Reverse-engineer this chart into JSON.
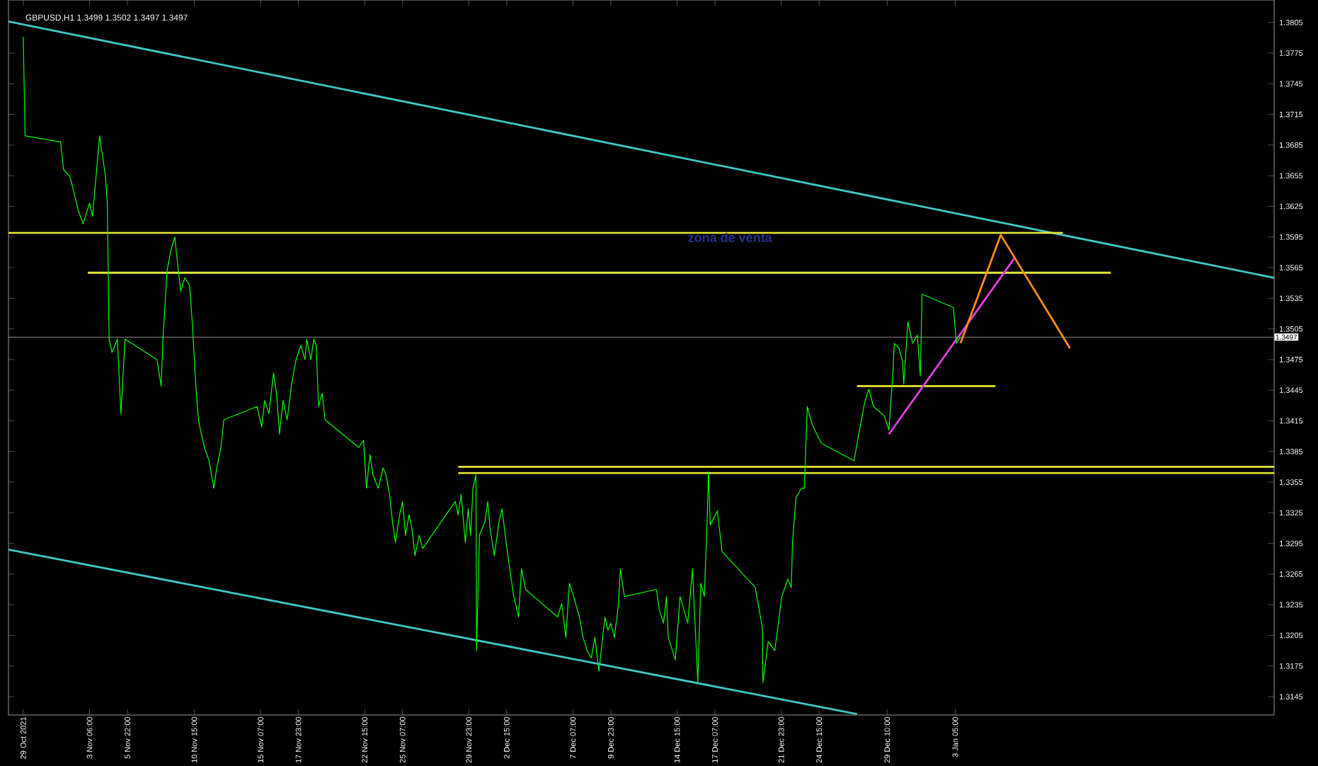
{
  "chart_data": {
    "type": "line",
    "title": "GBPUSD,H1  1.3499 1.3502 1.3497 1.3497",
    "line_style": "solid",
    "marker": "none",
    "xlim": [
      "2021-10-28T13:00",
      "2022-01-25T16:00"
    ],
    "ylim": [
      1.3127,
      1.3827
    ],
    "xticks": [
      {
        "value": "2021-10-29T14:00",
        "label": "29 Oct 2021"
      },
      {
        "value": "2021-11-03T06:00",
        "label": "3 Nov 06:00"
      },
      {
        "value": "2021-11-05T22:00",
        "label": "5 Nov 22:00"
      },
      {
        "value": "2021-11-10T15:00",
        "label": "10 Nov 15:00"
      },
      {
        "value": "2021-11-15T07:00",
        "label": "15 Nov 07:00"
      },
      {
        "value": "2021-11-17T23:00",
        "label": "17 Nov 23:00"
      },
      {
        "value": "2021-11-22T15:00",
        "label": "22 Nov 15:00"
      },
      {
        "value": "2021-11-25T07:00",
        "label": "25 Nov 07:00"
      },
      {
        "value": "2021-11-29T23:00",
        "label": "29 Nov 23:00"
      },
      {
        "value": "2021-12-02T15:00",
        "label": "2 Dec 15:00"
      },
      {
        "value": "2021-12-07T07:00",
        "label": "7 Dec 07:00"
      },
      {
        "value": "2021-12-09T23:00",
        "label": "9 Dec 23:00"
      },
      {
        "value": "2021-12-14T15:00",
        "label": "14 Dec 15:00"
      },
      {
        "value": "2021-12-17T07:00",
        "label": "17 Dec 07:00"
      },
      {
        "value": "2021-12-21T23:00",
        "label": "21 Dec 23:00"
      },
      {
        "value": "2021-12-24T15:00",
        "label": "24 Dec 15:00"
      },
      {
        "value": "2021-12-29T10:00",
        "label": "29 Dec 10:00"
      },
      {
        "value": "2022-01-03T05:00",
        "label": "3 Jan 05:00"
      }
    ],
    "yticks": [
      1.3145,
      1.3175,
      1.3205,
      1.3235,
      1.3265,
      1.3295,
      1.3325,
      1.3355,
      1.3385,
      1.3415,
      1.3445,
      1.3475,
      1.3505,
      1.3535,
      1.3565,
      1.3595,
      1.3625,
      1.3655,
      1.3685,
      1.3715,
      1.3745,
      1.3775,
      1.3805
    ],
    "ref_lines": [
      {
        "axis": "y",
        "value": 1.3497,
        "label": "1.3497",
        "color": "#8c8c8c"
      }
    ],
    "annotations": [
      "zona de venta"
    ],
    "series": [
      {
        "color": "#00ff00",
        "x": [
          "2021-10-29T14:00",
          "2021-10-29T17:00",
          "2021-11-01T05:00",
          "2021-11-01T10:00",
          "2021-11-01T21:00",
          "2021-11-02T11:00",
          "2021-11-02T19:00",
          "2021-11-03T06:00",
          "2021-11-03T11:00",
          "2021-11-03T23:00",
          "2021-11-04T09:00",
          "2021-11-04T12:00",
          "2021-11-04T15:00",
          "2021-11-04T20:00",
          "2021-11-05T05:00",
          "2021-11-05T11:00",
          "2021-11-05T18:00",
          "2021-11-08T00:00",
          "2021-11-08T07:00",
          "2021-11-08T10:00",
          "2021-11-08T17:00",
          "2021-11-08T23:00",
          "2021-11-09T06:00",
          "2021-11-09T11:00",
          "2021-11-09T16:00",
          "2021-11-09T23:00",
          "2021-11-10T07:00",
          "2021-11-10T12:00",
          "2021-11-10T17:00",
          "2021-11-10T22:00",
          "2021-11-11T03:00",
          "2021-11-11T08:00",
          "2021-11-11T16:00",
          "2021-11-12T00:00",
          "2021-11-12T05:00",
          "2021-11-12T12:00",
          "2021-11-12T17:00",
          "2021-11-15T01:00",
          "2021-11-15T09:00",
          "2021-11-15T14:00",
          "2021-11-15T21:00",
          "2021-11-16T05:00",
          "2021-11-16T10:00",
          "2021-11-16T15:00",
          "2021-11-16T21:00",
          "2021-11-17T04:00",
          "2021-11-17T11:00",
          "2021-11-17T19:00",
          "2021-11-18T03:00",
          "2021-11-18T10:00",
          "2021-11-18T13:00",
          "2021-11-18T20:00",
          "2021-11-19T01:00",
          "2021-11-19T05:00",
          "2021-11-19T09:00",
          "2021-11-19T15:00",
          "2021-11-19T20:00",
          "2021-11-22T05:00",
          "2021-11-22T13:00",
          "2021-11-22T18:00",
          "2021-11-23T00:00",
          "2021-11-23T05:00",
          "2021-11-23T14:00",
          "2021-11-23T22:00",
          "2021-11-24T03:00",
          "2021-11-24T09:00",
          "2021-11-24T14:00",
          "2021-11-24T19:00",
          "2021-11-25T02:00",
          "2021-11-25T07:00",
          "2021-11-25T12:00",
          "2021-11-25T18:00",
          "2021-11-25T23:00",
          "2021-11-26T04:00",
          "2021-11-26T11:00",
          "2021-11-26T17:00",
          "2021-11-29T00:00",
          "2021-11-29T05:00",
          "2021-11-29T10:00",
          "2021-11-29T17:00",
          "2021-11-29T22:00",
          "2021-11-30T02:00",
          "2021-11-30T06:00",
          "2021-11-30T11:00",
          "2021-11-30T12:00",
          "2021-11-30T17:00",
          "2021-12-01T02:00",
          "2021-12-01T07:00",
          "2021-12-01T11:00",
          "2021-12-01T18:00",
          "2021-12-02T02:00",
          "2021-12-02T07:00",
          "2021-12-02T14:00",
          "2021-12-02T20:00",
          "2021-12-03T03:00",
          "2021-12-03T11:00",
          "2021-12-03T16:00",
          "2021-12-03T23:00",
          "2021-12-06T05:00",
          "2021-12-06T12:00",
          "2021-12-06T19:00",
          "2021-12-07T01:00",
          "2021-12-07T08:00",
          "2021-12-07T18:00",
          "2021-12-08T00:00",
          "2021-12-08T07:00",
          "2021-12-08T14:00",
          "2021-12-08T20:00",
          "2021-12-09T03:00",
          "2021-12-09T08:00",
          "2021-12-09T13:00",
          "2021-12-09T18:00",
          "2021-12-09T23:00",
          "2021-12-10T05:00",
          "2021-12-10T12:00",
          "2021-12-10T15:00",
          "2021-12-10T22:00",
          "2021-12-13T04:00",
          "2021-12-13T09:00",
          "2021-12-13T16:00",
          "2021-12-13T21:00",
          "2021-12-14T00:00",
          "2021-12-14T12:00",
          "2021-12-14T20:00",
          "2021-12-15T09:00",
          "2021-12-15T17:00",
          "2021-12-16T02:00",
          "2021-12-16T07:00",
          "2021-12-16T13:00",
          "2021-12-16T18:00",
          "2021-12-16T20:00",
          "2021-12-16T23:00",
          "2021-12-17T11:00",
          "2021-12-17T19:00",
          "2021-12-20T03:00",
          "2021-12-20T15:00",
          "2021-12-20T16:00",
          "2021-12-21T01:00",
          "2021-12-21T12:00",
          "2021-12-22T00:00",
          "2021-12-22T10:00",
          "2021-12-22T16:00",
          "2021-12-22T18:00",
          "2021-12-23T00:00",
          "2021-12-23T09:00",
          "2021-12-23T14:00",
          "2021-12-23T19:00",
          "2021-12-24T03:00",
          "2021-12-24T11:00",
          "2021-12-24T19:00",
          "2021-12-27T02:00",
          "2021-12-27T10:00",
          "2021-12-27T20:00",
          "2021-12-28T03:00",
          "2021-12-28T11:00",
          "2021-12-28T19:00",
          "2021-12-29T05:00",
          "2021-12-29T13:00",
          "2021-12-29T20:00",
          "2021-12-29T22:00",
          "2021-12-30T06:00",
          "2021-12-30T12:00",
          "2021-12-30T14:00",
          "2021-12-30T21:00",
          "2021-12-31T05:00",
          "2021-12-31T13:00",
          "2021-12-31T18:00",
          "2021-12-31T21:00",
          "2022-01-03T02:00",
          "2022-01-03T07:00",
          "2022-01-03T14:00"
        ],
        "values": [
          1.3791,
          1.3694,
          1.3688,
          1.3661,
          1.3654,
          1.3621,
          1.3608,
          1.3628,
          1.3615,
          1.3694,
          1.3654,
          1.3628,
          1.3495,
          1.3482,
          1.3495,
          1.3422,
          1.3495,
          1.3475,
          1.3449,
          1.3495,
          1.3562,
          1.3581,
          1.3595,
          1.3568,
          1.3542,
          1.3555,
          1.3548,
          1.3508,
          1.3455,
          1.3416,
          1.3402,
          1.3389,
          1.3376,
          1.3349,
          1.3369,
          1.3389,
          1.3416,
          1.3429,
          1.3409,
          1.3435,
          1.3422,
          1.3462,
          1.3442,
          1.3402,
          1.3435,
          1.3416,
          1.3449,
          1.3475,
          1.3489,
          1.3475,
          1.3495,
          1.3475,
          1.3495,
          1.3489,
          1.3429,
          1.3442,
          1.3416,
          1.3389,
          1.3396,
          1.3349,
          1.3382,
          1.3362,
          1.3349,
          1.3369,
          1.3362,
          1.3343,
          1.3316,
          1.3296,
          1.3323,
          1.3336,
          1.3303,
          1.3323,
          1.3309,
          1.3283,
          1.3303,
          1.329,
          1.3336,
          1.3323,
          1.3343,
          1.3296,
          1.3329,
          1.3303,
          1.3349,
          1.3362,
          1.319,
          1.3303,
          1.3316,
          1.3336,
          1.3309,
          1.3283,
          1.3316,
          1.3329,
          1.3296,
          1.327,
          1.3243,
          1.3223,
          1.327,
          1.325,
          1.3223,
          1.3236,
          1.3203,
          1.3256,
          1.3243,
          1.3223,
          1.3203,
          1.319,
          1.3183,
          1.3203,
          1.317,
          1.3197,
          1.3223,
          1.321,
          1.3217,
          1.3203,
          1.3236,
          1.327,
          1.3243,
          1.325,
          1.323,
          1.3217,
          1.3243,
          1.3203,
          1.3181,
          1.3243,
          1.3217,
          1.327,
          1.3159,
          1.3256,
          1.3243,
          1.3323,
          1.3365,
          1.3313,
          1.3327,
          1.3287,
          1.3252,
          1.3213,
          1.3159,
          1.3199,
          1.319,
          1.3243,
          1.326,
          1.3252,
          1.3296,
          1.334,
          1.3349,
          1.3349,
          1.3429,
          1.3412,
          1.3402,
          1.3393,
          1.3376,
          1.3402,
          1.3433,
          1.3446,
          1.3429,
          1.3425,
          1.342,
          1.3406,
          1.3465,
          1.3491,
          1.3486,
          1.3473,
          1.3451,
          1.3512,
          1.3491,
          1.3499,
          1.3459,
          1.3539,
          1.3526,
          1.3491,
          1.3497
        ]
      },
      {
        "color": "#40c8c8",
        "x": [
          "2021-10-28T13:00",
          "2022-01-25T16:00"
        ],
        "values": [
          1.3806,
          1.3555
        ]
      },
      {
        "color": "#40c8c8",
        "x": [
          "2021-10-28T13:00",
          "2021-12-27T07:00"
        ],
        "values": [
          1.3289,
          1.3128
        ]
      },
      {
        "color": "#e6e632",
        "x": [
          "2021-10-28T13:00",
          "2022-01-10T19:00"
        ],
        "values": [
          1.3599,
          1.3599
        ]
      },
      {
        "color": "#e6e632",
        "x": [
          "2021-11-03T03:00",
          "2022-01-14T04:00"
        ],
        "values": [
          1.356,
          1.356
        ]
      },
      {
        "color": "#e6e632",
        "x": [
          "2021-11-29T05:00",
          "2022-01-25T16:00"
        ],
        "values": [
          1.337,
          1.337
        ]
      },
      {
        "color": "#e6e632",
        "x": [
          "2021-11-29T05:00",
          "2022-01-25T16:00"
        ],
        "values": [
          1.3364,
          1.3364
        ]
      },
      {
        "color": "#e6e632",
        "x": [
          "2021-12-27T07:00",
          "2022-01-06T01:00"
        ],
        "values": [
          1.3449,
          1.3449
        ]
      },
      {
        "color": "#e040e0",
        "x": [
          "2021-12-29T13:00",
          "2022-01-07T10:00"
        ],
        "values": [
          1.3402,
          1.3575
        ]
      },
      {
        "color": "#ff8c1a",
        "x": [
          "2022-01-03T14:00",
          "2022-01-06T10:00",
          "2022-01-11T07:00"
        ],
        "values": [
          1.3491,
          1.3597,
          1.3486
        ]
      }
    ]
  }
}
